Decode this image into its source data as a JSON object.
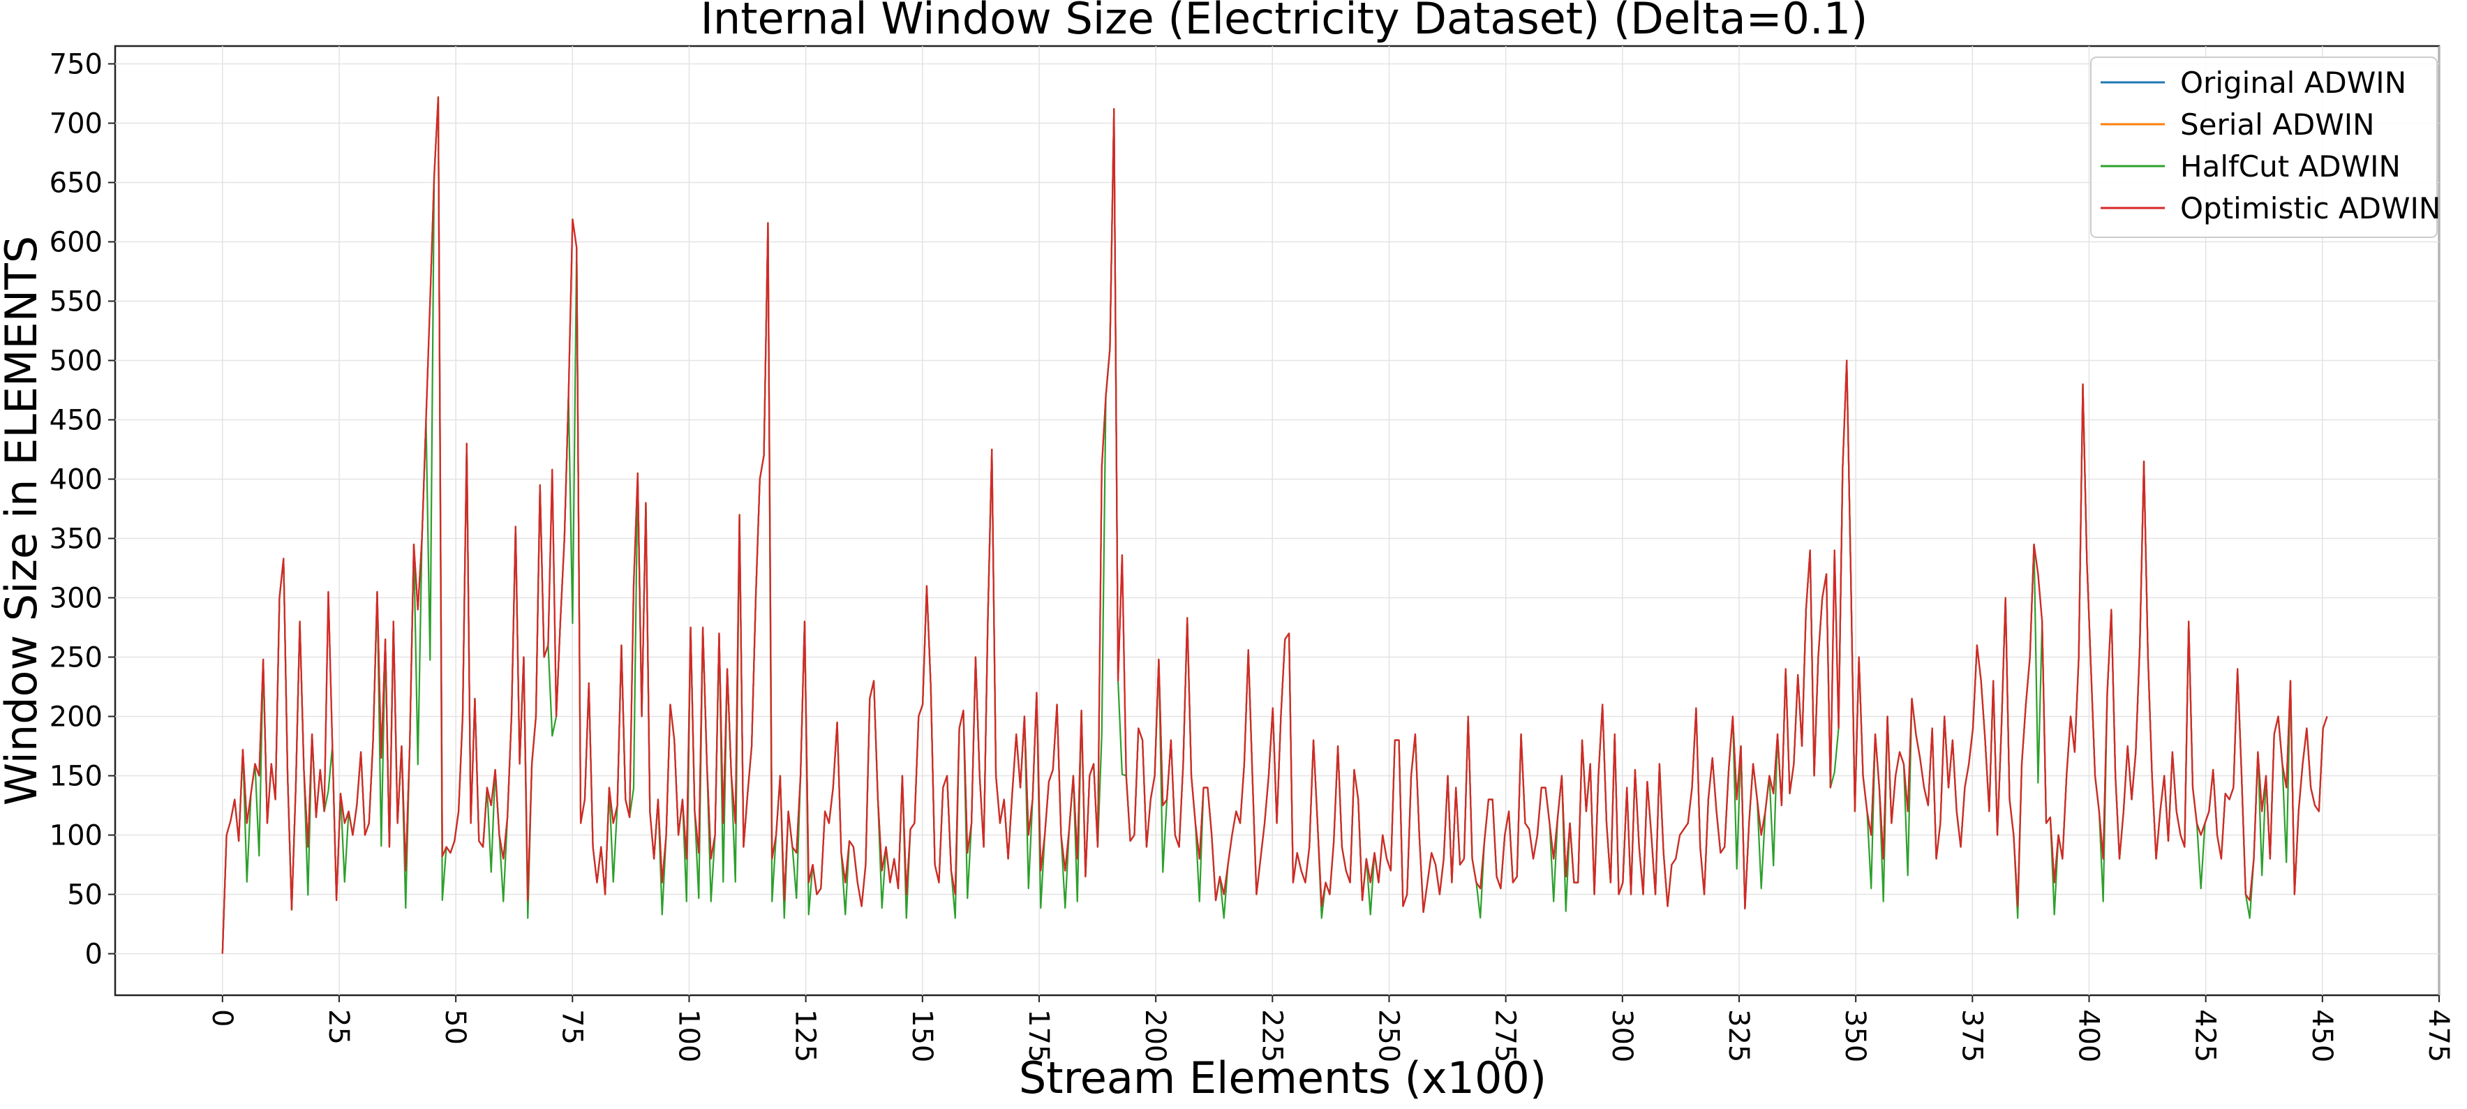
{
  "chart_data": {
    "type": "line",
    "title": "Internal Window Size (Electricity Dataset) (Delta=0.1)",
    "xlabel": "Stream Elements (x100)",
    "ylabel": "Window Size in ELEMENTS",
    "xlim": [
      -23,
      475
    ],
    "ylim": [
      -35,
      765
    ],
    "xticks": [
      0,
      25,
      50,
      75,
      100,
      125,
      150,
      175,
      200,
      225,
      250,
      275,
      300,
      325,
      350,
      375,
      400,
      425,
      450,
      475
    ],
    "yticks": [
      0,
      50,
      100,
      150,
      200,
      250,
      300,
      350,
      400,
      450,
      500,
      550,
      600,
      650,
      700,
      750
    ],
    "grid": true,
    "legend_position": "top-right",
    "series": [
      {
        "name": "Original ADWIN",
        "color": "#1f77b4",
        "values": [
          0,
          100,
          112,
          130,
          95,
          172,
          110,
          135,
          160,
          150,
          248,
          110,
          160,
          130,
          300,
          333,
          150,
          37,
          140,
          280,
          155,
          90,
          185,
          115,
          155,
          120,
          305,
          175,
          45,
          135,
          110,
          120,
          100,
          125,
          170,
          100,
          110,
          180,
          305,
          165,
          265,
          90,
          280,
          110,
          175,
          70,
          175,
          345,
          290,
          350,
          450,
          550,
          655,
          722,
          82,
          90,
          85,
          95,
          120,
          200,
          430,
          110,
          215,
          95,
          90,
          140,
          125,
          155,
          100,
          80,
          115,
          200,
          360,
          160,
          250,
          45,
          160,
          200,
          395,
          250,
          260,
          408,
          200,
          280,
          350,
          470,
          619,
          595,
          110,
          130,
          228,
          90,
          60,
          90,
          50,
          140,
          110,
          125,
          260,
          130,
          115,
          310,
          405,
          200,
          380,
          120,
          80,
          130,
          60,
          100,
          210,
          180,
          100,
          130,
          80,
          275,
          120,
          85,
          275,
          160,
          80,
          100,
          270,
          110,
          240,
          150,
          110,
          370,
          90,
          135,
          175,
          300,
          400,
          420,
          616,
          80,
          100,
          150,
          45,
          120,
          90,
          85,
          150,
          280,
          60,
          75,
          50,
          55,
          120,
          110,
          140,
          195,
          85,
          60,
          95,
          90,
          60,
          40,
          75,
          215,
          230,
          130,
          70,
          90,
          60,
          80,
          55,
          150,
          50,
          105,
          110,
          200,
          210,
          310,
          225,
          75,
          60,
          140,
          150,
          70,
          50,
          190,
          205,
          85,
          110,
          250,
          150,
          90,
          280,
          425,
          150,
          110,
          130,
          80,
          135,
          185,
          140,
          200,
          100,
          130,
          220,
          70,
          100,
          145,
          155,
          210,
          100,
          70,
          105,
          150,
          80,
          205,
          65,
          150,
          160,
          90,
          410,
          470,
          510,
          712,
          230,
          336,
          150,
          95,
          100,
          190,
          180,
          90,
          130,
          150,
          248,
          125,
          130,
          180,
          100,
          90,
          160,
          283,
          150,
          110,
          80,
          140,
          140,
          100,
          45,
          65,
          50,
          75,
          100,
          120,
          110,
          160,
          256,
          150,
          50,
          80,
          110,
          150,
          207,
          110,
          200,
          265,
          270,
          60,
          85,
          70,
          60,
          90,
          180,
          110,
          40,
          60,
          50,
          95,
          175,
          90,
          70,
          60,
          155,
          130,
          45,
          80,
          60,
          85,
          60,
          100,
          80,
          70,
          180,
          180,
          40,
          50,
          150,
          185,
          100,
          35,
          60,
          85,
          75,
          50,
          80,
          150,
          60,
          140,
          75,
          80,
          200,
          80,
          60,
          55,
          95,
          130,
          130,
          65,
          55,
          100,
          120,
          60,
          65,
          185,
          110,
          105,
          80,
          100,
          140,
          140,
          110,
          80,
          115,
          150,
          65,
          110,
          60,
          60,
          180,
          120,
          160,
          50,
          150,
          210,
          110,
          60,
          185,
          50,
          60,
          140,
          50,
          155,
          90,
          50,
          145,
          100,
          50,
          160,
          85,
          40,
          75,
          80,
          100,
          105,
          110,
          140,
          207,
          90,
          50,
          130,
          165,
          120,
          85,
          90,
          155,
          200,
          130,
          175,
          38,
          110,
          160,
          130,
          100,
          120,
          150,
          135,
          185,
          125,
          240,
          135,
          160,
          235,
          175,
          290,
          340,
          150,
          250,
          300,
          320,
          140,
          340,
          190,
          410,
          500,
          320,
          120,
          250,
          150,
          120,
          100,
          185,
          140,
          80,
          200,
          110,
          150,
          170,
          160,
          120,
          215,
          185,
          165,
          140,
          125,
          190,
          80,
          110,
          200,
          140,
          180,
          120,
          90,
          140,
          160,
          190,
          260,
          230,
          180,
          120,
          230,
          100,
          190,
          300,
          130,
          100,
          40,
          160,
          210,
          250,
          345,
          320,
          280,
          110,
          115,
          60,
          100,
          80,
          150,
          200,
          170,
          250,
          480,
          330,
          240,
          150,
          120,
          80,
          220,
          290,
          150,
          80,
          120,
          175,
          130,
          170,
          260,
          415,
          250,
          150,
          80,
          120,
          150,
          95,
          170,
          120,
          100,
          90,
          280,
          140,
          110,
          100,
          110,
          120,
          155,
          100,
          80,
          135,
          130,
          140,
          240,
          150,
          50,
          45,
          80,
          170,
          120,
          150,
          80,
          185,
          200,
          160,
          140,
          230,
          50,
          120,
          160,
          190,
          140,
          125,
          120,
          190,
          200
        ],
        "note_values_step": 1
      },
      {
        "name": "Serial ADWIN",
        "color": "#ff7f0e",
        "values": "same-as:Original ADWIN"
      },
      {
        "name": "HalfCut ADWIN",
        "color": "#2ca02c",
        "values": "same-as:Optimistic ADWIN with deeper drops"
      },
      {
        "name": "Optimistic ADWIN",
        "color": "#d62728",
        "values": "same-as:Original ADWIN"
      }
    ]
  }
}
